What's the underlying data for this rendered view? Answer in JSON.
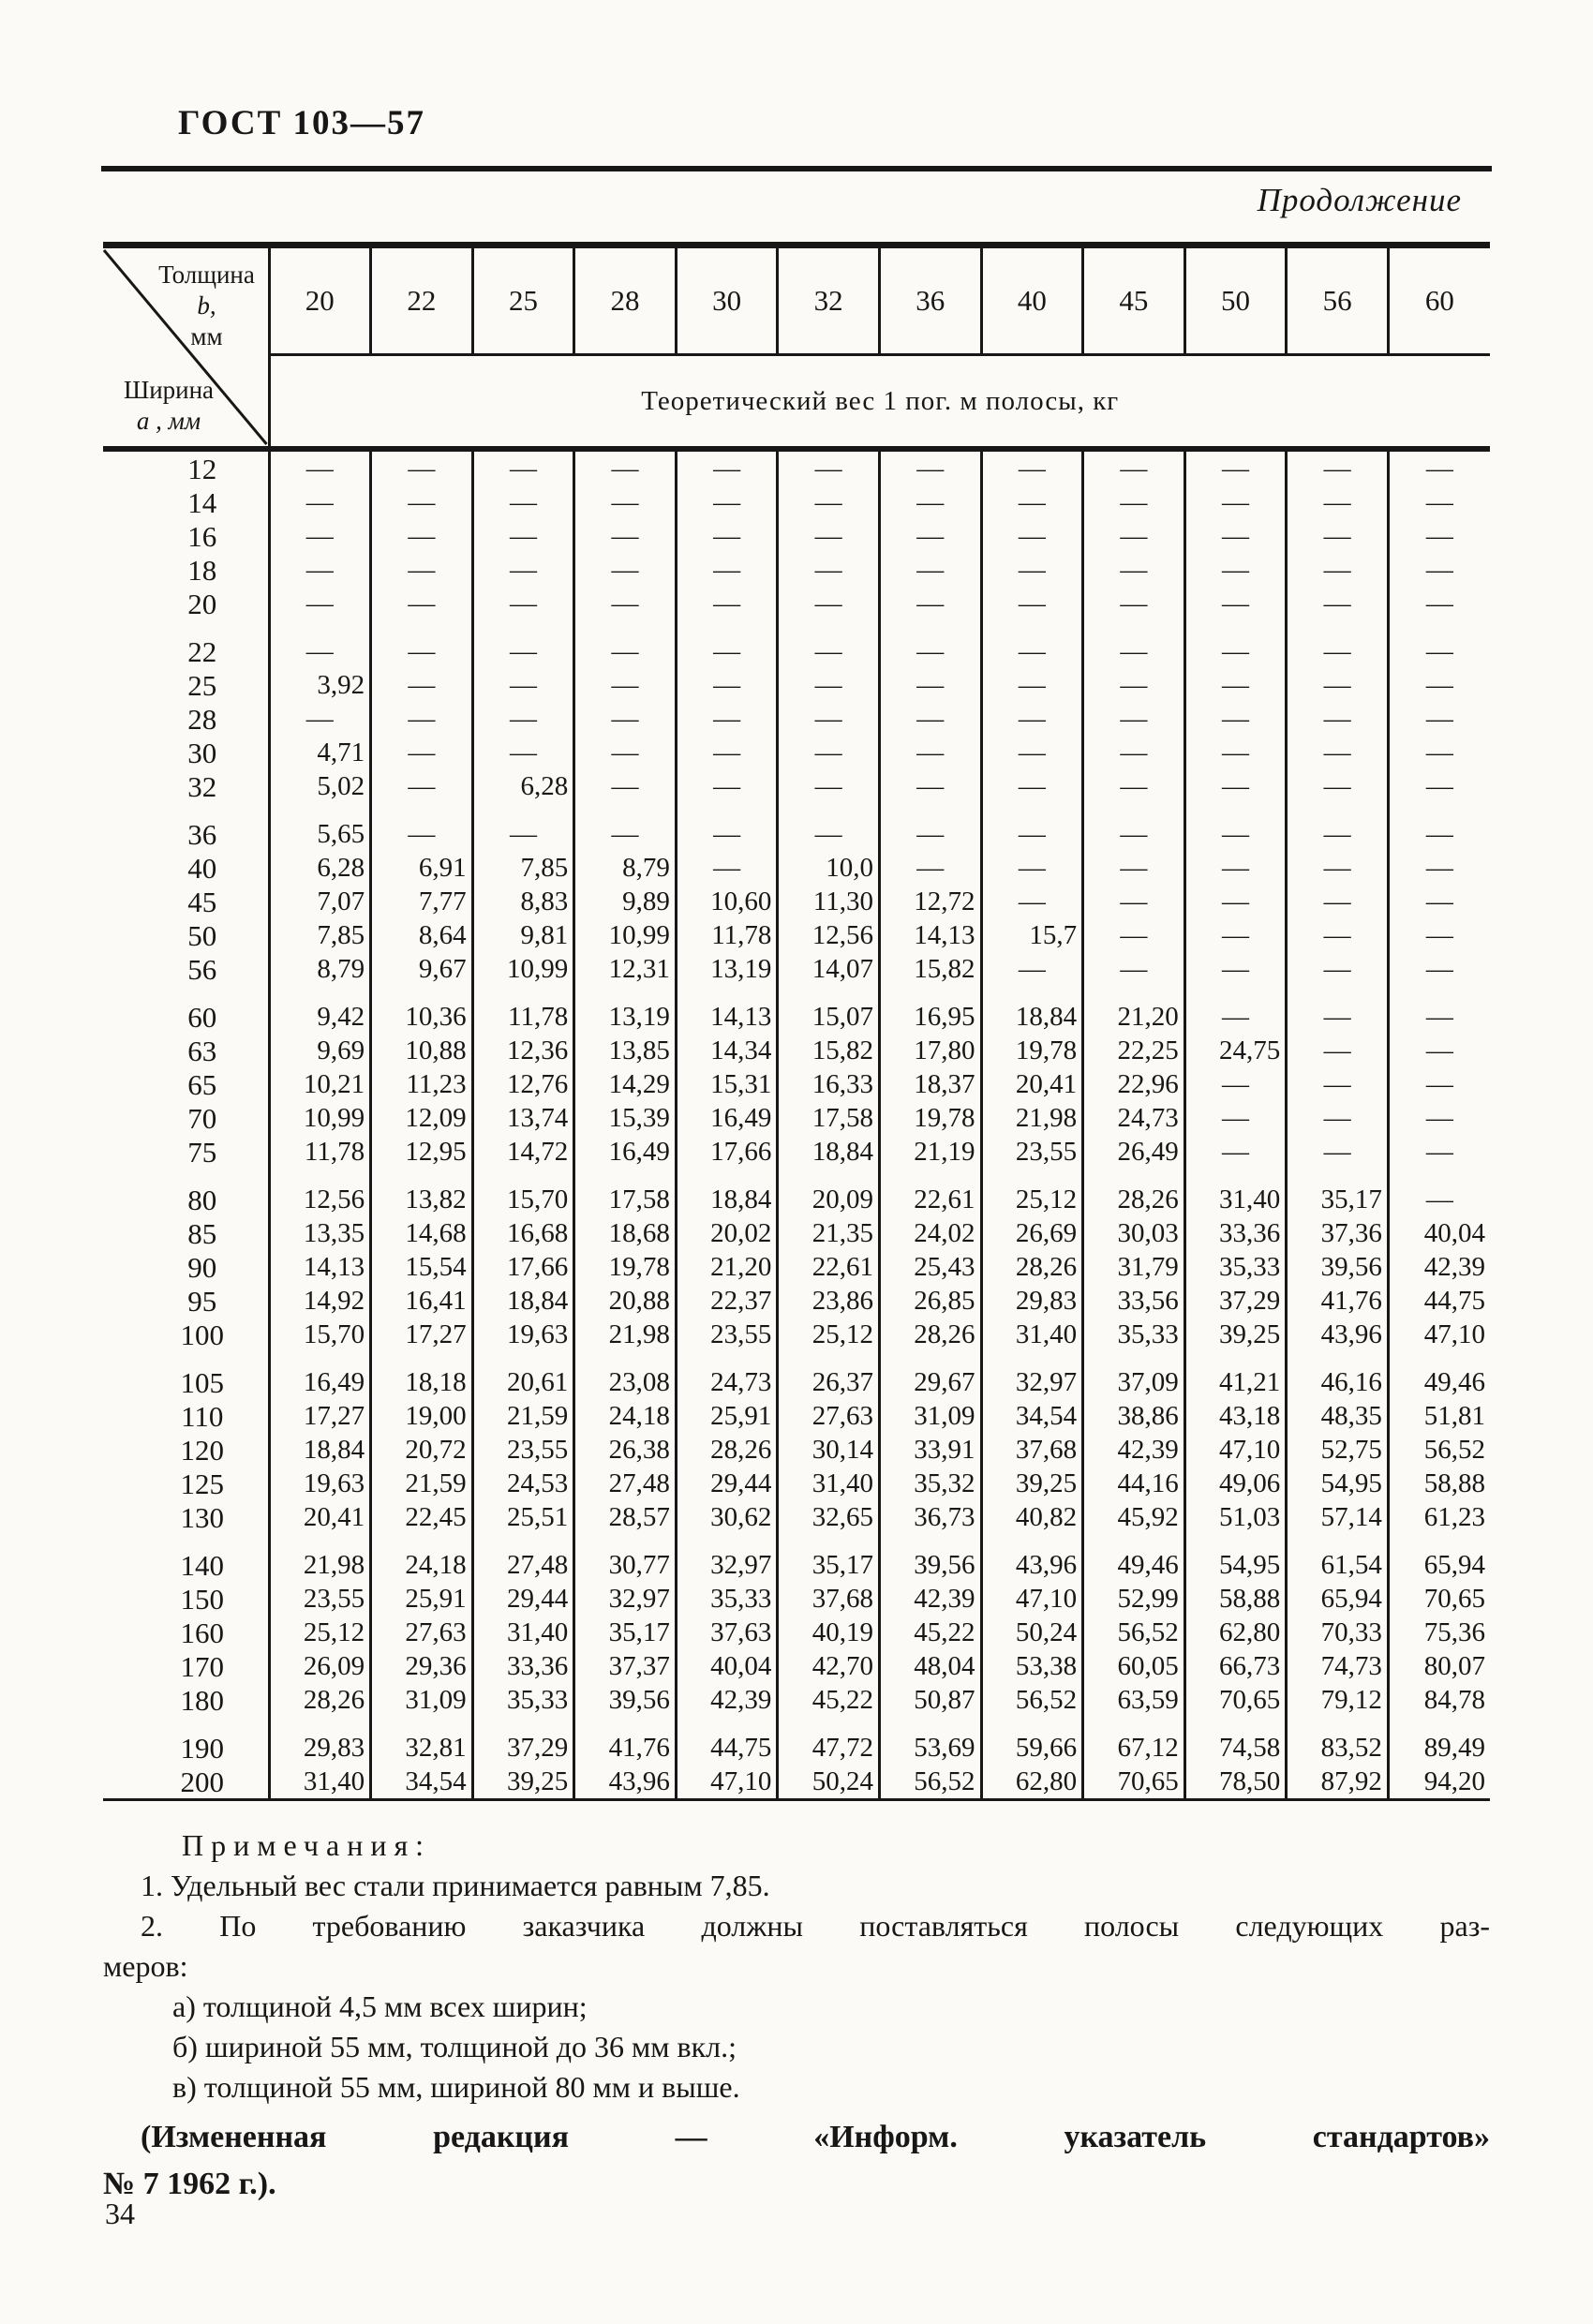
{
  "page": {
    "doc_ref": "ГОСТ 103—57",
    "continuation": "Продолжение",
    "page_number": "34"
  },
  "table": {
    "corner": {
      "thickness_label": "Толщина",
      "thickness_var": "b,",
      "thickness_unit": "мм",
      "width_label": "Ширина",
      "width_var": "а , мм"
    },
    "span_header": "Теоретический вес 1 пог. м полосы, кг",
    "columns": [
      "20",
      "22",
      "25",
      "28",
      "30",
      "32",
      "36",
      "40",
      "45",
      "50",
      "56",
      "60"
    ],
    "rows": [
      {
        "width": "12",
        "gap": false,
        "values": [
          "—",
          "—",
          "—",
          "—",
          "—",
          "—",
          "—",
          "—",
          "—",
          "—",
          "—",
          "—"
        ]
      },
      {
        "width": "14",
        "gap": false,
        "values": [
          "—",
          "—",
          "—",
          "—",
          "—",
          "—",
          "—",
          "—",
          "—",
          "—",
          "—",
          "—"
        ]
      },
      {
        "width": "16",
        "gap": false,
        "values": [
          "—",
          "—",
          "—",
          "—",
          "—",
          "—",
          "—",
          "—",
          "—",
          "—",
          "—",
          "—"
        ]
      },
      {
        "width": "18",
        "gap": false,
        "values": [
          "—",
          "—",
          "—",
          "—",
          "—",
          "—",
          "—",
          "—",
          "—",
          "—",
          "—",
          "—"
        ]
      },
      {
        "width": "20",
        "gap": false,
        "values": [
          "—",
          "—",
          "—",
          "—",
          "—",
          "—",
          "—",
          "—",
          "—",
          "—",
          "—",
          "—"
        ]
      },
      {
        "width": "22",
        "gap": true,
        "values": [
          "—",
          "—",
          "—",
          "—",
          "—",
          "—",
          "—",
          "—",
          "—",
          "—",
          "—",
          "—"
        ]
      },
      {
        "width": "25",
        "gap": false,
        "values": [
          "3,92",
          "—",
          "—",
          "—",
          "—",
          "—",
          "—",
          "—",
          "—",
          "—",
          "—",
          "—"
        ]
      },
      {
        "width": "28",
        "gap": false,
        "values": [
          "—",
          "—",
          "—",
          "—",
          "—",
          "—",
          "—",
          "—",
          "—",
          "—",
          "—",
          "—"
        ]
      },
      {
        "width": "30",
        "gap": false,
        "values": [
          "4,71",
          "—",
          "—",
          "—",
          "—",
          "—",
          "—",
          "—",
          "—",
          "—",
          "—",
          "—"
        ]
      },
      {
        "width": "32",
        "gap": false,
        "values": [
          "5,02",
          "—",
          "6,28",
          "—",
          "—",
          "—",
          "—",
          "—",
          "—",
          "—",
          "—",
          "—"
        ]
      },
      {
        "width": "36",
        "gap": true,
        "values": [
          "5,65",
          "—",
          "—",
          "—",
          "—",
          "—",
          "—",
          "—",
          "—",
          "—",
          "—",
          "—"
        ]
      },
      {
        "width": "40",
        "gap": false,
        "values": [
          "6,28",
          "6,91",
          "7,85",
          "8,79",
          "—",
          "10,0",
          "—",
          "—",
          "—",
          "—",
          "—",
          "—"
        ]
      },
      {
        "width": "45",
        "gap": false,
        "values": [
          "7,07",
          "7,77",
          "8,83",
          "9,89",
          "10,60",
          "11,30",
          "12,72",
          "—",
          "—",
          "—",
          "—",
          "—"
        ]
      },
      {
        "width": "50",
        "gap": false,
        "values": [
          "7,85",
          "8,64",
          "9,81",
          "10,99",
          "11,78",
          "12,56",
          "14,13",
          "15,7",
          "—",
          "—",
          "—",
          "—"
        ]
      },
      {
        "width": "56",
        "gap": false,
        "values": [
          "8,79",
          "9,67",
          "10,99",
          "12,31",
          "13,19",
          "14,07",
          "15,82",
          "—",
          "—",
          "—",
          "—",
          "—"
        ]
      },
      {
        "width": "60",
        "gap": true,
        "values": [
          "9,42",
          "10,36",
          "11,78",
          "13,19",
          "14,13",
          "15,07",
          "16,95",
          "18,84",
          "21,20",
          "—",
          "—",
          "—"
        ]
      },
      {
        "width": "63",
        "gap": false,
        "values": [
          "9,69",
          "10,88",
          "12,36",
          "13,85",
          "14,34",
          "15,82",
          "17,80",
          "19,78",
          "22,25",
          "24,75",
          "—",
          "—"
        ]
      },
      {
        "width": "65",
        "gap": false,
        "values": [
          "10,21",
          "11,23",
          "12,76",
          "14,29",
          "15,31",
          "16,33",
          "18,37",
          "20,41",
          "22,96",
          "—",
          "—",
          "—"
        ]
      },
      {
        "width": "70",
        "gap": false,
        "values": [
          "10,99",
          "12,09",
          "13,74",
          "15,39",
          "16,49",
          "17,58",
          "19,78",
          "21,98",
          "24,73",
          "—",
          "—",
          "—"
        ]
      },
      {
        "width": "75",
        "gap": false,
        "values": [
          "11,78",
          "12,95",
          "14,72",
          "16,49",
          "17,66",
          "18,84",
          "21,19",
          "23,55",
          "26,49",
          "—",
          "—",
          "—"
        ]
      },
      {
        "width": "80",
        "gap": true,
        "values": [
          "12,56",
          "13,82",
          "15,70",
          "17,58",
          "18,84",
          "20,09",
          "22,61",
          "25,12",
          "28,26",
          "31,40",
          "35,17",
          "—"
        ]
      },
      {
        "width": "85",
        "gap": false,
        "values": [
          "13,35",
          "14,68",
          "16,68",
          "18,68",
          "20,02",
          "21,35",
          "24,02",
          "26,69",
          "30,03",
          "33,36",
          "37,36",
          "40,04"
        ]
      },
      {
        "width": "90",
        "gap": false,
        "values": [
          "14,13",
          "15,54",
          "17,66",
          "19,78",
          "21,20",
          "22,61",
          "25,43",
          "28,26",
          "31,79",
          "35,33",
          "39,56",
          "42,39"
        ]
      },
      {
        "width": "95",
        "gap": false,
        "values": [
          "14,92",
          "16,41",
          "18,84",
          "20,88",
          "22,37",
          "23,86",
          "26,85",
          "29,83",
          "33,56",
          "37,29",
          "41,76",
          "44,75"
        ]
      },
      {
        "width": "100",
        "gap": false,
        "values": [
          "15,70",
          "17,27",
          "19,63",
          "21,98",
          "23,55",
          "25,12",
          "28,26",
          "31,40",
          "35,33",
          "39,25",
          "43,96",
          "47,10"
        ]
      },
      {
        "width": "105",
        "gap": true,
        "values": [
          "16,49",
          "18,18",
          "20,61",
          "23,08",
          "24,73",
          "26,37",
          "29,67",
          "32,97",
          "37,09",
          "41,21",
          "46,16",
          "49,46"
        ]
      },
      {
        "width": "110",
        "gap": false,
        "values": [
          "17,27",
          "19,00",
          "21,59",
          "24,18",
          "25,91",
          "27,63",
          "31,09",
          "34,54",
          "38,86",
          "43,18",
          "48,35",
          "51,81"
        ]
      },
      {
        "width": "120",
        "gap": false,
        "values": [
          "18,84",
          "20,72",
          "23,55",
          "26,38",
          "28,26",
          "30,14",
          "33,91",
          "37,68",
          "42,39",
          "47,10",
          "52,75",
          "56,52"
        ]
      },
      {
        "width": "125",
        "gap": false,
        "values": [
          "19,63",
          "21,59",
          "24,53",
          "27,48",
          "29,44",
          "31,40",
          "35,32",
          "39,25",
          "44,16",
          "49,06",
          "54,95",
          "58,88"
        ]
      },
      {
        "width": "130",
        "gap": false,
        "values": [
          "20,41",
          "22,45",
          "25,51",
          "28,57",
          "30,62",
          "32,65",
          "36,73",
          "40,82",
          "45,92",
          "51,03",
          "57,14",
          "61,23"
        ]
      },
      {
        "width": "140",
        "gap": true,
        "values": [
          "21,98",
          "24,18",
          "27,48",
          "30,77",
          "32,97",
          "35,17",
          "39,56",
          "43,96",
          "49,46",
          "54,95",
          "61,54",
          "65,94"
        ]
      },
      {
        "width": "150",
        "gap": false,
        "values": [
          "23,55",
          "25,91",
          "29,44",
          "32,97",
          "35,33",
          "37,68",
          "42,39",
          "47,10",
          "52,99",
          "58,88",
          "65,94",
          "70,65"
        ]
      },
      {
        "width": "160",
        "gap": false,
        "values": [
          "25,12",
          "27,63",
          "31,40",
          "35,17",
          "37,63",
          "40,19",
          "45,22",
          "50,24",
          "56,52",
          "62,80",
          "70,33",
          "75,36"
        ]
      },
      {
        "width": "170",
        "gap": false,
        "values": [
          "26,09",
          "29,36",
          "33,36",
          "37,37",
          "40,04",
          "42,70",
          "48,04",
          "53,38",
          "60,05",
          "66,73",
          "74,73",
          "80,07"
        ]
      },
      {
        "width": "180",
        "gap": false,
        "values": [
          "28,26",
          "31,09",
          "35,33",
          "39,56",
          "42,39",
          "45,22",
          "50,87",
          "56,52",
          "63,59",
          "70,65",
          "79,12",
          "84,78"
        ]
      },
      {
        "width": "190",
        "gap": true,
        "values": [
          "29,83",
          "32,81",
          "37,29",
          "41,76",
          "44,75",
          "47,72",
          "53,69",
          "59,66",
          "67,12",
          "74,58",
          "83,52",
          "89,49"
        ]
      },
      {
        "width": "200",
        "gap": false,
        "values": [
          "31,40",
          "34,54",
          "39,25",
          "43,96",
          "47,10",
          "50,24",
          "56,52",
          "62,80",
          "70,65",
          "78,50",
          "87,92",
          "94,20"
        ]
      }
    ]
  },
  "notes": {
    "heading": "Примечания:",
    "note1": "1. Удельный вес стали принимается равным 7,85.",
    "note2_line1": "2. По требованию заказчика должны поставляться полосы следующих раз-",
    "note2_line2": "меров:",
    "item_a": "а) толщиной 4,5 мм всех ширин;",
    "item_b": "б) шириной 55 мм, толщиной до 36 мм вкл.;",
    "item_v": "в) толщиной 55 мм, шириной 80 мм и выше."
  },
  "footer": {
    "amendment_line1": "(Измененная редакция — «Информ. указатель стандартов»",
    "amendment_line2": "№ 7 1962 г.)."
  }
}
